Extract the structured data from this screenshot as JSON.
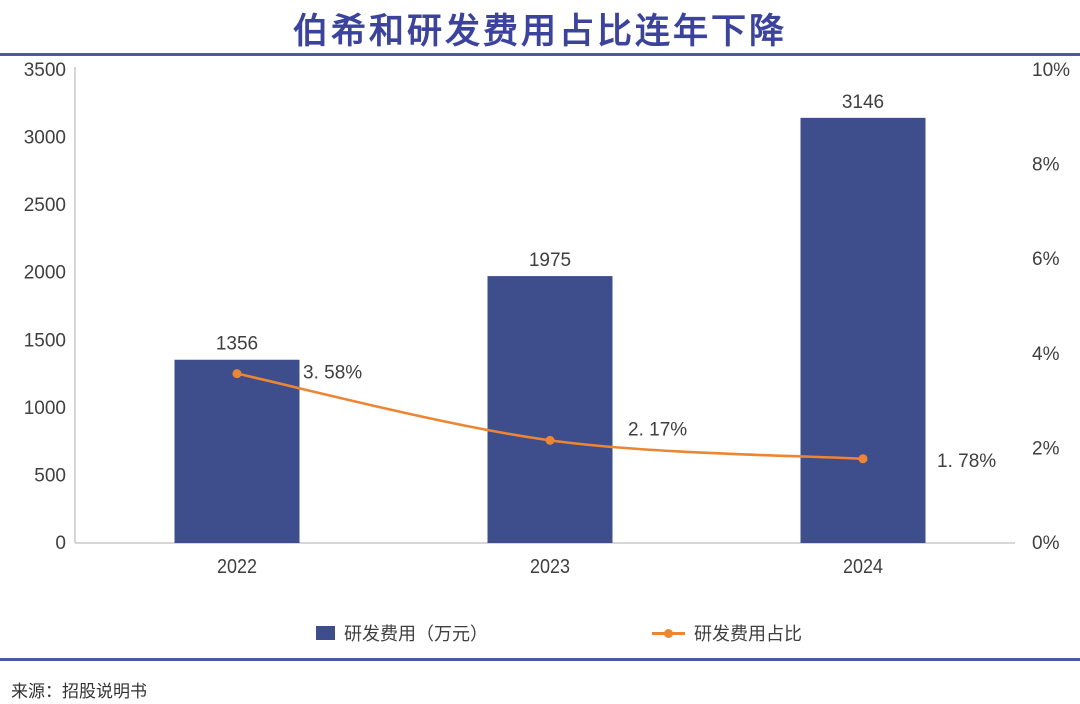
{
  "title": "伯希和研发费用占比连年下降",
  "source": "来源：招股说明书",
  "colors": {
    "bar": "#3E4D8B",
    "line": "#ED8633",
    "title": "#3B439C",
    "rule": "#4A59A8",
    "axis_line": "#BFBFBF",
    "text": "#3F3F3F"
  },
  "legend": {
    "items": [
      {
        "label": "研发费用（万元）",
        "marker": "bar-swatch"
      },
      {
        "label": "研发费用占比",
        "marker": "line-marker"
      }
    ]
  },
  "chart_data": {
    "type": "bar+line combo",
    "title": "伯希和研发费用占比连年下降",
    "categories": [
      "2022",
      "2023",
      "2024"
    ],
    "series": [
      {
        "name": "研发费用（万元）",
        "type": "bar",
        "axis": "left",
        "values": [
          1356,
          1975,
          3146
        ],
        "data_labels": [
          "1356",
          "1975",
          "3146"
        ]
      },
      {
        "name": "研发费用占比",
        "type": "line",
        "axis": "right",
        "values": [
          3.58,
          2.17,
          1.78
        ],
        "data_labels": [
          "3. 58%",
          "2. 17%",
          "1. 78%"
        ]
      }
    ],
    "left_axis": {
      "min": 0,
      "max": 3500,
      "ticks": [
        {
          "v": 3500,
          "label": "3500"
        },
        {
          "v": 3000,
          "label": "3000"
        },
        {
          "v": 2500,
          "label": "2500"
        },
        {
          "v": 2000,
          "label": "2000"
        },
        {
          "v": 1500,
          "label": "1500"
        },
        {
          "v": 1000,
          "label": "1000"
        },
        {
          "v": 500,
          "label": "500"
        },
        {
          "v": 0,
          "label": "0"
        }
      ]
    },
    "right_axis": {
      "min": 0,
      "max": 10,
      "ticks": [
        {
          "v": 10,
          "label": "10%"
        },
        {
          "v": 8,
          "label": "8%"
        },
        {
          "v": 6,
          "label": "6%"
        },
        {
          "v": 4,
          "label": "4%"
        },
        {
          "v": 2,
          "label": "2%"
        },
        {
          "v": 0,
          "label": "0%"
        }
      ]
    },
    "grid": false,
    "legend_position": "bottom"
  }
}
